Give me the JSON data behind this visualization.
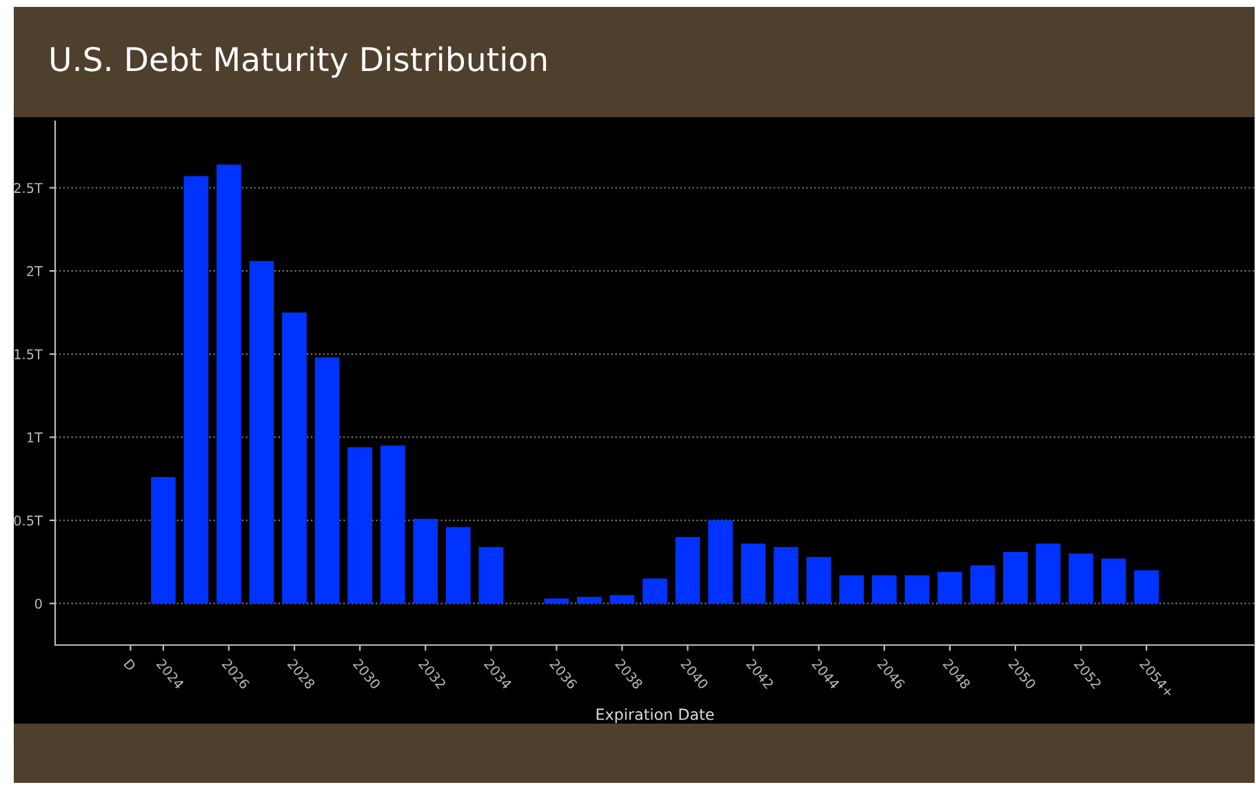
{
  "chart_data": {
    "type": "bar",
    "title": "U.S. Debt Maturity Distribution",
    "xlabel": "Expiration Date",
    "categories": [
      "D",
      "2024",
      null,
      "2026",
      null,
      "2028",
      null,
      "2030",
      null,
      "2032",
      null,
      "2034",
      null,
      "2036",
      null,
      "2038",
      null,
      "2040",
      null,
      "2042",
      null,
      "2044",
      null,
      "2046",
      null,
      "2048",
      null,
      "2050",
      null,
      "2052",
      null,
      "2054+",
      null
    ],
    "values": [
      null,
      0.76,
      2.57,
      2.64,
      2.06,
      1.75,
      1.48,
      0.94,
      0.95,
      0.51,
      0.46,
      0.34,
      null,
      0.03,
      0.04,
      0.05,
      0.15,
      0.4,
      0.5,
      0.36,
      0.34,
      0.28,
      0.17,
      0.17,
      0.17,
      0.19,
      0.23,
      0.31,
      0.36,
      0.3,
      0.27,
      0.2,
      null
    ],
    "color": "#0033ff",
    "ylim": [
      -0.25,
      2.9
    ],
    "yticks": [
      {
        "value": 0,
        "label": "0"
      },
      {
        "value": 0.5,
        "label": "0.5T"
      },
      {
        "value": 1,
        "label": "1T"
      },
      {
        "value": 1.5,
        "label": "1.5T"
      },
      {
        "value": 2,
        "label": "2T"
      },
      {
        "value": 2.5,
        "label": "2.5T"
      }
    ],
    "grid": "y",
    "line_style": "dotted"
  }
}
